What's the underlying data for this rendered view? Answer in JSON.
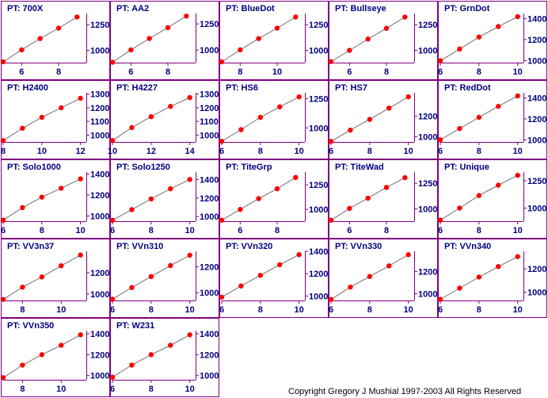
{
  "copyright": "Copyright Gregory J  Mushial 1997-2003      All Rights Reserved",
  "colors": {
    "frame": "#800080",
    "axis": "#800080",
    "tick_label": "#000080",
    "title": "#000080",
    "line": "#707070",
    "point": "#ff0000",
    "plot_bg": "#ffffff"
  },
  "chart_data": [
    {
      "type": "line",
      "title": "PT:  700X",
      "x": [
        5,
        6,
        7,
        8,
        9
      ],
      "values": [
        888,
        1005,
        1115,
        1217,
        1326
      ],
      "xlim": [
        5,
        9.5
      ],
      "ylim": [
        880,
        1360
      ],
      "xticks": [
        6,
        8
      ],
      "yticks": [
        1000,
        1250
      ]
    },
    {
      "type": "line",
      "title": "PT:  AA2",
      "x": [
        5,
        6,
        7,
        8,
        9
      ],
      "values": [
        884,
        1002,
        1111,
        1215,
        1325
      ],
      "xlim": [
        5,
        9.5
      ],
      "ylim": [
        880,
        1350
      ],
      "xticks": [
        6,
        8
      ],
      "yticks": [
        1000,
        1250
      ]
    },
    {
      "type": "line",
      "title": "PT:  BlueDot",
      "x": [
        7,
        8,
        9,
        10,
        11
      ],
      "values": [
        888,
        1005,
        1115,
        1217,
        1326
      ],
      "xlim": [
        7,
        11.5
      ],
      "ylim": [
        880,
        1360
      ],
      "xticks": [
        8,
        10
      ],
      "yticks": [
        1000,
        1250
      ]
    },
    {
      "type": "line",
      "title": "PT:  Bullseye",
      "x": [
        5,
        6,
        7,
        8,
        9
      ],
      "values": [
        890,
        1000,
        1110,
        1215,
        1325
      ],
      "xlim": [
        5,
        9.5
      ],
      "ylim": [
        880,
        1360
      ],
      "xticks": [
        6,
        8
      ],
      "yticks": [
        1000,
        1250
      ]
    },
    {
      "type": "line",
      "title": "PT:  GrnDot",
      "x": [
        6,
        7,
        8,
        9,
        10
      ],
      "values": [
        998,
        1110,
        1225,
        1325,
        1420
      ],
      "xlim": [
        6,
        10.3
      ],
      "ylim": [
        980,
        1450
      ],
      "xticks": [
        6,
        8,
        10
      ],
      "yticks": [
        1000,
        1200,
        1400
      ]
    },
    {
      "type": "line",
      "title": "PT:  H2400",
      "x": [
        8,
        9,
        10,
        11,
        12
      ],
      "values": [
        960,
        1050,
        1130,
        1200,
        1270
      ],
      "xlim": [
        8,
        12.3
      ],
      "ylim": [
        950,
        1310
      ],
      "xticks": [
        8,
        10,
        12
      ],
      "yticks": [
        1000,
        1100,
        1200,
        1300
      ]
    },
    {
      "type": "line",
      "title": "PT:  H4227",
      "x": [
        10,
        11,
        12,
        13,
        14
      ],
      "values": [
        960,
        1055,
        1135,
        1210,
        1275
      ],
      "xlim": [
        10,
        14.3
      ],
      "ylim": [
        950,
        1310
      ],
      "xticks": [
        10,
        12,
        14
      ],
      "yticks": [
        1000,
        1100,
        1200,
        1300
      ]
    },
    {
      "type": "line",
      "title": "PT:  HS6",
      "x": [
        6,
        7,
        8,
        9,
        10
      ],
      "values": [
        885,
        985,
        1090,
        1180,
        1265
      ],
      "xlim": [
        6,
        10.3
      ],
      "ylim": [
        880,
        1300
      ],
      "xticks": [
        6,
        8,
        10
      ],
      "yticks": [
        1000,
        1250
      ]
    },
    {
      "type": "line",
      "title": "PT:  HS7",
      "x": [
        6,
        7,
        8,
        9,
        10
      ],
      "values": [
        955,
        1065,
        1170,
        1280,
        1390
      ],
      "xlim": [
        6,
        10.3
      ],
      "ylim": [
        950,
        1430
      ],
      "xticks": [
        6,
        8,
        10
      ],
      "yticks": [
        1000,
        1200
      ]
    },
    {
      "type": "line",
      "title": "PT:  RedDot",
      "x": [
        6,
        7,
        8,
        9,
        10
      ],
      "values": [
        1000,
        1108,
        1215,
        1320,
        1420
      ],
      "xlim": [
        6,
        10.3
      ],
      "ylim": [
        980,
        1450
      ],
      "xticks": [
        6,
        8,
        10
      ],
      "yticks": [
        1000,
        1200,
        1400
      ]
    },
    {
      "type": "line",
      "title": "PT:  Solo1000",
      "x": [
        6,
        7,
        8,
        9,
        10
      ],
      "values": [
        960,
        1080,
        1180,
        1265,
        1355
      ],
      "xlim": [
        6,
        10.3
      ],
      "ylim": [
        950,
        1420
      ],
      "xticks": [
        6,
        8,
        10
      ],
      "yticks": [
        1000,
        1200,
        1400
      ]
    },
    {
      "type": "line",
      "title": "PT:  Solo1250",
      "x": [
        6,
        7,
        8,
        9,
        10
      ],
      "values": [
        960,
        1075,
        1190,
        1300,
        1400
      ],
      "xlim": [
        6,
        10.3
      ],
      "ylim": [
        950,
        1480
      ],
      "xticks": [
        6,
        8,
        10
      ],
      "yticks": [
        1000,
        1200,
        1400
      ]
    },
    {
      "type": "line",
      "title": "PT:  TiteGrp",
      "x": [
        5,
        6,
        7,
        8,
        9
      ],
      "values": [
        890,
        1000,
        1110,
        1210,
        1325
      ],
      "xlim": [
        5,
        9.5
      ],
      "ylim": [
        880,
        1380
      ],
      "xticks": [
        6,
        8
      ],
      "yticks": [
        1000,
        1250
      ]
    },
    {
      "type": "line",
      "title": "PT:  TiteWad",
      "x": [
        5,
        6,
        7,
        8,
        9
      ],
      "values": [
        890,
        1005,
        1105,
        1210,
        1305
      ],
      "xlim": [
        5,
        9.5
      ],
      "ylim": [
        880,
        1360
      ],
      "xticks": [
        6,
        8
      ],
      "yticks": [
        1000,
        1250
      ]
    },
    {
      "type": "line",
      "title": "PT:  Unique",
      "x": [
        6,
        7,
        8,
        9,
        10
      ],
      "values": [
        890,
        1000,
        1115,
        1210,
        1300
      ],
      "xlim": [
        6,
        10.3
      ],
      "ylim": [
        880,
        1330
      ],
      "xticks": [
        6,
        8,
        10
      ],
      "yticks": [
        1000,
        1250
      ]
    },
    {
      "type": "line",
      "title": "PT:  VV3n37",
      "x": [
        7,
        8,
        9,
        10,
        11
      ],
      "values": [
        950,
        1065,
        1160,
        1265,
        1365
      ],
      "xlim": [
        7,
        11.3
      ],
      "ylim": [
        940,
        1400
      ],
      "xticks": [
        8,
        10
      ],
      "yticks": [
        1000,
        1200
      ]
    },
    {
      "type": "line",
      "title": "PT:  VVn310",
      "x": [
        6,
        7,
        8,
        9,
        10
      ],
      "values": [
        950,
        1040,
        1125,
        1210,
        1290
      ],
      "xlim": [
        6,
        10.3
      ],
      "ylim": [
        940,
        1320
      ],
      "xticks": [
        6,
        8,
        10
      ],
      "yticks": [
        1000,
        1200
      ]
    },
    {
      "type": "line",
      "title": "PT:  VVn320",
      "x": [
        6,
        7,
        8,
        9,
        10
      ],
      "values": [
        990,
        1090,
        1185,
        1280,
        1370
      ],
      "xlim": [
        6,
        10.3
      ],
      "ylim": [
        960,
        1400
      ],
      "xticks": [
        6,
        8,
        10
      ],
      "yticks": [
        1000,
        1200,
        1400
      ]
    },
    {
      "type": "line",
      "title": "PT:  VVn330",
      "x": [
        6,
        7,
        8,
        9,
        10
      ],
      "values": [
        950,
        1060,
        1155,
        1250,
        1350
      ],
      "xlim": [
        6,
        10.3
      ],
      "ylim": [
        940,
        1380
      ],
      "xticks": [
        6,
        8,
        10
      ],
      "yticks": [
        1000,
        1200
      ]
    },
    {
      "type": "line",
      "title": "PT:  VVn340",
      "x": [
        6,
        7,
        8,
        9,
        10
      ],
      "values": [
        940,
        1035,
        1130,
        1220,
        1305
      ],
      "xlim": [
        6,
        10.3
      ],
      "ylim": [
        930,
        1350
      ],
      "xticks": [
        6,
        8,
        10
      ],
      "yticks": [
        1000,
        1200
      ]
    },
    {
      "type": "line",
      "title": "PT:  VVn350",
      "x": [
        7,
        8,
        9,
        10,
        11
      ],
      "values": [
        980,
        1100,
        1200,
        1290,
        1390
      ],
      "xlim": [
        7,
        11.3
      ],
      "ylim": [
        960,
        1430
      ],
      "xticks": [
        8,
        10
      ],
      "yticks": [
        1000,
        1200,
        1400
      ]
    },
    {
      "type": "line",
      "title": "PT:  W231",
      "x": [
        6,
        7,
        8,
        9,
        10
      ],
      "values": [
        985,
        1100,
        1200,
        1290,
        1390
      ],
      "xlim": [
        6,
        10.3
      ],
      "ylim": [
        960,
        1430
      ],
      "xticks": [
        6,
        8,
        10
      ],
      "yticks": [
        1000,
        1200,
        1400
      ]
    }
  ]
}
